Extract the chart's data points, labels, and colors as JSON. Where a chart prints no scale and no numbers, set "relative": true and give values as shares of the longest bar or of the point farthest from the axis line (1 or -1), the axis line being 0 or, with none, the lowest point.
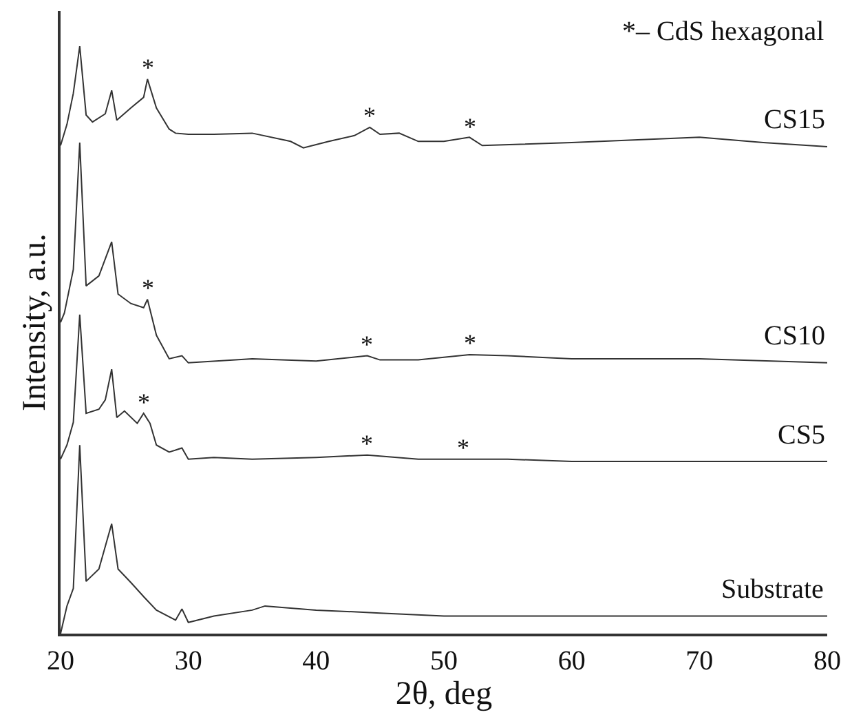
{
  "chart_data": {
    "type": "line",
    "relative": true,
    "xlabel": "2θ, deg",
    "ylabel": "Intensity, a.u.",
    "xlim": [
      20,
      80
    ],
    "xticks": [
      20,
      30,
      40,
      50,
      60,
      70,
      80
    ],
    "legend": false,
    "marker": "none",
    "line_style": "solid",
    "annotations": [
      "*– CdS hexagonal",
      {
        "text": "*",
        "x": 26.8,
        "y": 0.944
      },
      {
        "text": "*",
        "x": 44.2,
        "y": 0.862
      },
      {
        "text": "*",
        "x": 52,
        "y": 0.845
      },
      {
        "text": "*",
        "x": 26.8,
        "y": 0.569
      },
      {
        "text": "*",
        "x": 44,
        "y": 0.473
      },
      {
        "text": "*",
        "x": 52,
        "y": 0.475
      },
      {
        "text": "*",
        "x": 26.5,
        "y": 0.375
      },
      {
        "text": "*",
        "x": 44,
        "y": 0.304
      },
      {
        "text": "*",
        "x": 51.5,
        "y": 0.297
      }
    ],
    "series": [
      {
        "name": "CS15",
        "color": "#333333",
        "x": [
          20,
          20.5,
          21,
          21.5,
          22,
          22.5,
          23.5,
          24,
          24.4,
          25.5,
          26.5,
          26.8,
          27.5,
          28.5,
          29,
          30,
          32,
          35,
          38,
          39,
          41,
          43,
          44.2,
          45,
          46.5,
          48,
          50,
          52,
          53,
          60,
          70,
          75,
          80
        ],
        "values": [
          0.831,
          0.867,
          0.92,
          1.0,
          0.883,
          0.871,
          0.885,
          0.925,
          0.874,
          0.895,
          0.913,
          0.944,
          0.895,
          0.859,
          0.852,
          0.85,
          0.85,
          0.852,
          0.838,
          0.827,
          0.838,
          0.848,
          0.862,
          0.85,
          0.852,
          0.838,
          0.838,
          0.845,
          0.831,
          0.836,
          0.845,
          0.836,
          0.829
        ]
      },
      {
        "name": "CS10",
        "color": "#333333",
        "x": [
          20,
          20.3,
          21,
          21.5,
          22,
          23,
          24,
          24.5,
          25.5,
          26.5,
          26.8,
          27.5,
          28.5,
          29.5,
          30,
          35,
          40,
          44,
          45,
          48,
          52,
          55,
          60,
          70,
          80
        ],
        "values": [
          0.53,
          0.546,
          0.62,
          0.836,
          0.592,
          0.609,
          0.667,
          0.578,
          0.562,
          0.555,
          0.569,
          0.508,
          0.468,
          0.473,
          0.461,
          0.468,
          0.464,
          0.473,
          0.466,
          0.466,
          0.475,
          0.473,
          0.468,
          0.468,
          0.461
        ]
      },
      {
        "name": "CS5",
        "color": "#333333",
        "x": [
          20,
          20.5,
          21,
          21.5,
          22,
          23,
          23.5,
          24,
          24.4,
          25,
          26,
          26.5,
          27,
          27.5,
          28.5,
          29.5,
          30,
          32,
          35,
          40,
          44,
          48,
          51.5,
          55,
          60,
          70,
          80
        ],
        "values": [
          0.297,
          0.321,
          0.36,
          0.543,
          0.375,
          0.382,
          0.398,
          0.45,
          0.368,
          0.379,
          0.358,
          0.375,
          0.358,
          0.321,
          0.309,
          0.316,
          0.297,
          0.3,
          0.297,
          0.3,
          0.304,
          0.297,
          0.297,
          0.297,
          0.293,
          0.293,
          0.293
        ]
      },
      {
        "name": "Substrate",
        "color": "#333333",
        "x": [
          20,
          20.5,
          21,
          21.5,
          22,
          23,
          24,
          24.5,
          25.5,
          26.5,
          27.5,
          29,
          29.5,
          30,
          32,
          35,
          36,
          40,
          45,
          50,
          60,
          70,
          80
        ],
        "values": [
          0,
          0.047,
          0.077,
          0.321,
          0.089,
          0.11,
          0.187,
          0.11,
          0.087,
          0.063,
          0.04,
          0.023,
          0.042,
          0.019,
          0.03,
          0.04,
          0.047,
          0.04,
          0.035,
          0.03,
          0.03,
          0.03,
          0.03
        ]
      }
    ]
  }
}
